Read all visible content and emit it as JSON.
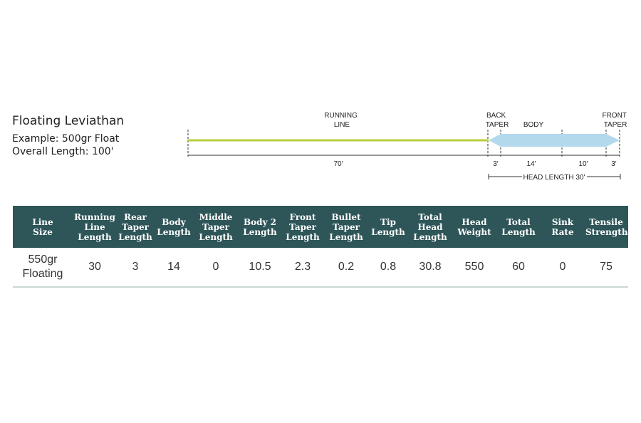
{
  "product": {
    "title": "Floating Leviathan",
    "example": "Example: 500gr Float",
    "overall_length": "Overall Length: 100'"
  },
  "diagram": {
    "running_line_label": "RUNNING\nLINE",
    "back_taper_label": "BACK\nTAPER",
    "body_label": "BODY",
    "front_taper_label": "FRONT\nTAPER",
    "segments": [
      {
        "name": "running-line",
        "length": "70'",
        "color": "#b9cc3c"
      },
      {
        "name": "back-taper",
        "length": "3'",
        "color": "#b3d9ec"
      },
      {
        "name": "body",
        "length": "14'",
        "color": "#b3d9ec"
      },
      {
        "name": "body2",
        "length": "10'",
        "color": "#b3d9ec"
      },
      {
        "name": "front-taper",
        "length": "3'",
        "color": "#b3d9ec"
      }
    ],
    "head_length_label": "HEAD LENGTH 30'"
  },
  "table": {
    "headers": [
      "Line\nSize",
      "Running\nLine\nLength",
      "Rear\nTaper\nLength",
      "Body\nLength",
      "Middle\nTaper\nLength",
      "Body 2\nLength",
      "Front\nTaper\nLength",
      "Bullet\nTaper\nLength",
      "Tip\nLength",
      "Total\nHead\nLength",
      "Head\nWeight",
      "Total\nLength",
      "Sink\nRate",
      "Tensile\nStrength"
    ],
    "rows": [
      [
        "550gr\nFloating",
        "30",
        "3",
        "14",
        "0",
        "10.5",
        "2.3",
        "0.2",
        "0.8",
        "30.8",
        "550",
        "60",
        "0",
        "75"
      ]
    ],
    "header_color": "#2e5558"
  }
}
